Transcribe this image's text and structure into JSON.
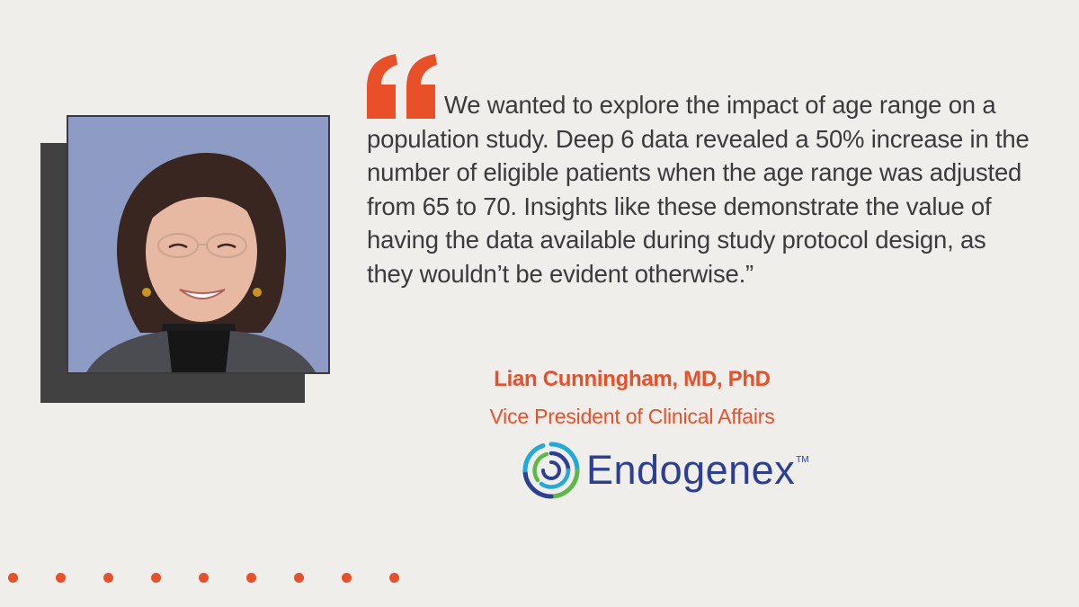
{
  "quote": {
    "text": "We wanted to explore the impact of age range on a population study. Deep 6 data revealed a 50% increase in the number of eligible patients when the age range was adjusted from 65 to 70. Insights like these demonstrate the value of having the data available during study protocol design, as they wouldn’t be evident otherwise.”",
    "mark_icon": "open-quote-icon"
  },
  "author": {
    "name": "Lian Cunningham, MD, PhD",
    "title": "Vice President of Clinical Affairs"
  },
  "logo": {
    "wordmark": "Endogenex",
    "trademark": "TM",
    "icon": "concentric-rings-icon"
  },
  "colors": {
    "background": "#f0eeea",
    "accent": "#e8502a",
    "text": "#3b3b3d",
    "shadow": "#414142",
    "photo_bg": "#8e9cc5",
    "brand_blue": "#2c3f92",
    "brand_cyan": "#23a8d8",
    "brand_green": "#5ab947"
  },
  "decoration": {
    "dot_count": 9,
    "dot_icon": "dot-icon"
  }
}
